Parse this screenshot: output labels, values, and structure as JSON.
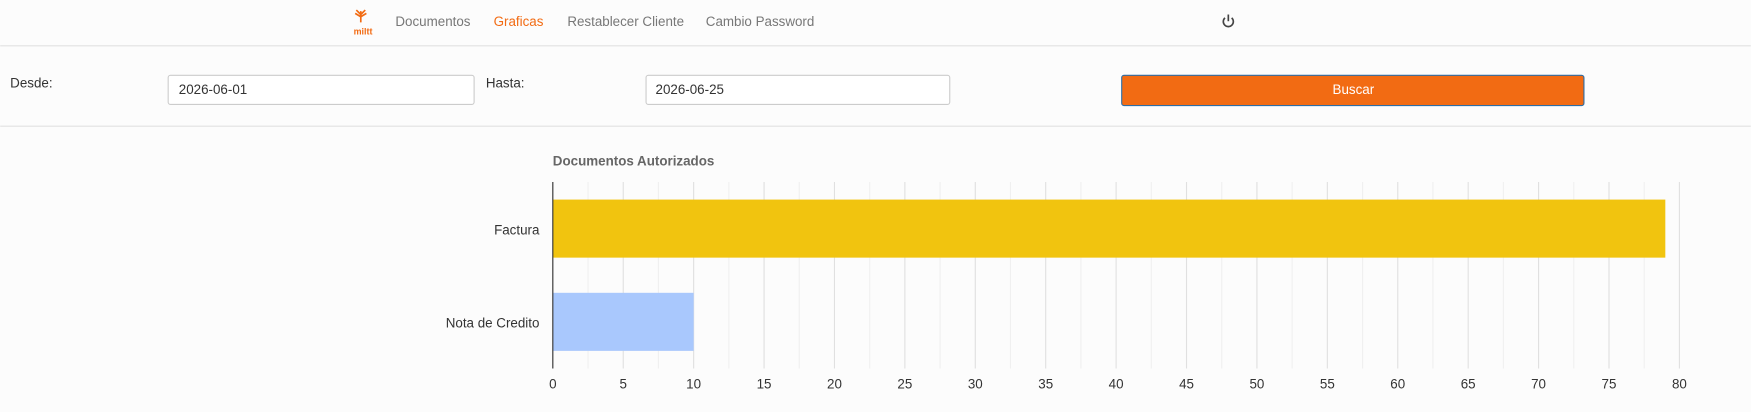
{
  "nav": {
    "logo": "miltt",
    "links": [
      "Documentos",
      "Graficas",
      "Restablecer Cliente",
      "Cambio Password"
    ],
    "active": 1
  },
  "form": {
    "desde_label": "Desde:",
    "desde": "2026-06-01",
    "hasta_label": "Hasta:",
    "hasta": "2026-06-25",
    "button": "Buscar"
  },
  "chart_data": {
    "type": "bar",
    "orientation": "horizontal",
    "title": "Documentos Autorizados",
    "categories": [
      "Factura",
      "Nota de Credito"
    ],
    "values": [
      79,
      10
    ],
    "colors": [
      "#f1c40f",
      "#a9c8fd"
    ],
    "xlim": [
      0,
      80
    ],
    "xticks": [
      0,
      5,
      10,
      15,
      20,
      25,
      30,
      35,
      40,
      45,
      50,
      55,
      60,
      65,
      70,
      75,
      80
    ],
    "grid": true
  }
}
